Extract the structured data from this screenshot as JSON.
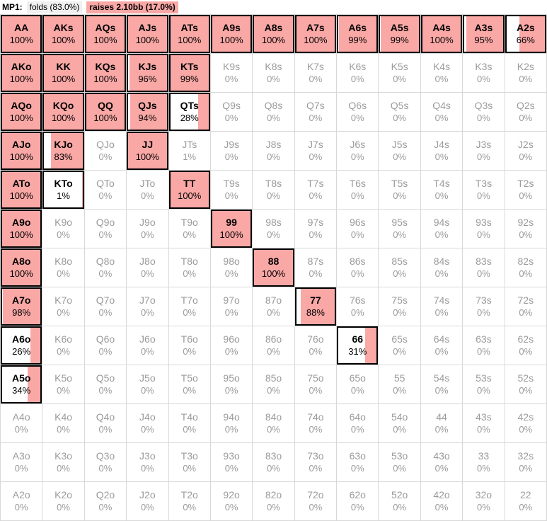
{
  "header": {
    "position_label": "MP1:",
    "folds_label": "folds (83.0%)",
    "raises_label": "raises 2.10bb (17.0%)"
  },
  "colors": {
    "raise_fill": "#f9a8a6",
    "grid_line": "#d8d8d8",
    "muted_text": "#9b9b9b",
    "hot_border": "#000000"
  },
  "chart_data": {
    "type": "heatmap",
    "title": "MP1 preflop range: folds 83.0%, raises 2.10bb 17.0%",
    "legend": [
      "raise frequency shown as pink fill from right"
    ],
    "rows": [
      [
        {
          "h": "AA",
          "p": 100,
          "hot": true
        },
        {
          "h": "AKs",
          "p": 100,
          "hot": true
        },
        {
          "h": "AQs",
          "p": 100,
          "hot": true
        },
        {
          "h": "AJs",
          "p": 100,
          "hot": true
        },
        {
          "h": "ATs",
          "p": 100,
          "hot": true
        },
        {
          "h": "A9s",
          "p": 100,
          "hot": true
        },
        {
          "h": "A8s",
          "p": 100,
          "hot": true
        },
        {
          "h": "A7s",
          "p": 100,
          "hot": true
        },
        {
          "h": "A6s",
          "p": 99,
          "hot": true
        },
        {
          "h": "A5s",
          "p": 99,
          "hot": true
        },
        {
          "h": "A4s",
          "p": 100,
          "hot": true
        },
        {
          "h": "A3s",
          "p": 95,
          "hot": true
        },
        {
          "h": "A2s",
          "p": 66,
          "hot": true
        }
      ],
      [
        {
          "h": "AKo",
          "p": 100,
          "hot": true
        },
        {
          "h": "KK",
          "p": 100,
          "hot": true
        },
        {
          "h": "KQs",
          "p": 100,
          "hot": true
        },
        {
          "h": "KJs",
          "p": 96,
          "hot": true
        },
        {
          "h": "KTs",
          "p": 99,
          "hot": true
        },
        {
          "h": "K9s",
          "p": 0,
          "hot": false
        },
        {
          "h": "K8s",
          "p": 0,
          "hot": false
        },
        {
          "h": "K7s",
          "p": 0,
          "hot": false
        },
        {
          "h": "K6s",
          "p": 0,
          "hot": false
        },
        {
          "h": "K5s",
          "p": 0,
          "hot": false
        },
        {
          "h": "K4s",
          "p": 0,
          "hot": false
        },
        {
          "h": "K3s",
          "p": 0,
          "hot": false
        },
        {
          "h": "K2s",
          "p": 0,
          "hot": false
        }
      ],
      [
        {
          "h": "AQo",
          "p": 100,
          "hot": true
        },
        {
          "h": "KQo",
          "p": 100,
          "hot": true
        },
        {
          "h": "QQ",
          "p": 100,
          "hot": true
        },
        {
          "h": "QJs",
          "p": 94,
          "hot": true
        },
        {
          "h": "QTs",
          "p": 28,
          "hot": true
        },
        {
          "h": "Q9s",
          "p": 0,
          "hot": false
        },
        {
          "h": "Q8s",
          "p": 0,
          "hot": false
        },
        {
          "h": "Q7s",
          "p": 0,
          "hot": false
        },
        {
          "h": "Q6s",
          "p": 0,
          "hot": false
        },
        {
          "h": "Q5s",
          "p": 0,
          "hot": false
        },
        {
          "h": "Q4s",
          "p": 0,
          "hot": false
        },
        {
          "h": "Q3s",
          "p": 0,
          "hot": false
        },
        {
          "h": "Q2s",
          "p": 0,
          "hot": false
        }
      ],
      [
        {
          "h": "AJo",
          "p": 100,
          "hot": true
        },
        {
          "h": "KJo",
          "p": 83,
          "hot": true
        },
        {
          "h": "QJo",
          "p": 0,
          "hot": false
        },
        {
          "h": "JJ",
          "p": 100,
          "hot": true
        },
        {
          "h": "JTs",
          "p": 1,
          "hot": false
        },
        {
          "h": "J9s",
          "p": 0,
          "hot": false
        },
        {
          "h": "J8s",
          "p": 0,
          "hot": false
        },
        {
          "h": "J7s",
          "p": 0,
          "hot": false
        },
        {
          "h": "J6s",
          "p": 0,
          "hot": false
        },
        {
          "h": "J5s",
          "p": 0,
          "hot": false
        },
        {
          "h": "J4s",
          "p": 0,
          "hot": false
        },
        {
          "h": "J3s",
          "p": 0,
          "hot": false
        },
        {
          "h": "J2s",
          "p": 0,
          "hot": false
        }
      ],
      [
        {
          "h": "ATo",
          "p": 100,
          "hot": true
        },
        {
          "h": "KTo",
          "p": 1,
          "hot": true
        },
        {
          "h": "QTo",
          "p": 0,
          "hot": false
        },
        {
          "h": "JTo",
          "p": 0,
          "hot": false
        },
        {
          "h": "TT",
          "p": 100,
          "hot": true
        },
        {
          "h": "T9s",
          "p": 0,
          "hot": false
        },
        {
          "h": "T8s",
          "p": 0,
          "hot": false
        },
        {
          "h": "T7s",
          "p": 0,
          "hot": false
        },
        {
          "h": "T6s",
          "p": 0,
          "hot": false
        },
        {
          "h": "T5s",
          "p": 0,
          "hot": false
        },
        {
          "h": "T4s",
          "p": 0,
          "hot": false
        },
        {
          "h": "T3s",
          "p": 0,
          "hot": false
        },
        {
          "h": "T2s",
          "p": 0,
          "hot": false
        }
      ],
      [
        {
          "h": "A9o",
          "p": 100,
          "hot": true
        },
        {
          "h": "K9o",
          "p": 0,
          "hot": false
        },
        {
          "h": "Q9o",
          "p": 0,
          "hot": false
        },
        {
          "h": "J9o",
          "p": 0,
          "hot": false
        },
        {
          "h": "T9o",
          "p": 0,
          "hot": false
        },
        {
          "h": "99",
          "p": 100,
          "hot": true
        },
        {
          "h": "98s",
          "p": 0,
          "hot": false
        },
        {
          "h": "97s",
          "p": 0,
          "hot": false
        },
        {
          "h": "96s",
          "p": 0,
          "hot": false
        },
        {
          "h": "95s",
          "p": 0,
          "hot": false
        },
        {
          "h": "94s",
          "p": 0,
          "hot": false
        },
        {
          "h": "93s",
          "p": 0,
          "hot": false
        },
        {
          "h": "92s",
          "p": 0,
          "hot": false
        }
      ],
      [
        {
          "h": "A8o",
          "p": 100,
          "hot": true
        },
        {
          "h": "K8o",
          "p": 0,
          "hot": false
        },
        {
          "h": "Q8o",
          "p": 0,
          "hot": false
        },
        {
          "h": "J8o",
          "p": 0,
          "hot": false
        },
        {
          "h": "T8o",
          "p": 0,
          "hot": false
        },
        {
          "h": "98o",
          "p": 0,
          "hot": false
        },
        {
          "h": "88",
          "p": 100,
          "hot": true
        },
        {
          "h": "87s",
          "p": 0,
          "hot": false
        },
        {
          "h": "86s",
          "p": 0,
          "hot": false
        },
        {
          "h": "85s",
          "p": 0,
          "hot": false
        },
        {
          "h": "84s",
          "p": 0,
          "hot": false
        },
        {
          "h": "83s",
          "p": 0,
          "hot": false
        },
        {
          "h": "82s",
          "p": 0,
          "hot": false
        }
      ],
      [
        {
          "h": "A7o",
          "p": 98,
          "hot": true
        },
        {
          "h": "K7o",
          "p": 0,
          "hot": false
        },
        {
          "h": "Q7o",
          "p": 0,
          "hot": false
        },
        {
          "h": "J7o",
          "p": 0,
          "hot": false
        },
        {
          "h": "T7o",
          "p": 0,
          "hot": false
        },
        {
          "h": "97o",
          "p": 0,
          "hot": false
        },
        {
          "h": "87o",
          "p": 0,
          "hot": false
        },
        {
          "h": "77",
          "p": 88,
          "hot": true
        },
        {
          "h": "76s",
          "p": 0,
          "hot": false
        },
        {
          "h": "75s",
          "p": 0,
          "hot": false
        },
        {
          "h": "74s",
          "p": 0,
          "hot": false
        },
        {
          "h": "73s",
          "p": 0,
          "hot": false
        },
        {
          "h": "72s",
          "p": 0,
          "hot": false
        }
      ],
      [
        {
          "h": "A6o",
          "p": 26,
          "hot": true
        },
        {
          "h": "K6o",
          "p": 0,
          "hot": false
        },
        {
          "h": "Q6o",
          "p": 0,
          "hot": false
        },
        {
          "h": "J6o",
          "p": 0,
          "hot": false
        },
        {
          "h": "T6o",
          "p": 0,
          "hot": false
        },
        {
          "h": "96o",
          "p": 0,
          "hot": false
        },
        {
          "h": "86o",
          "p": 0,
          "hot": false
        },
        {
          "h": "76o",
          "p": 0,
          "hot": false
        },
        {
          "h": "66",
          "p": 31,
          "hot": true
        },
        {
          "h": "65s",
          "p": 0,
          "hot": false
        },
        {
          "h": "64s",
          "p": 0,
          "hot": false
        },
        {
          "h": "63s",
          "p": 0,
          "hot": false
        },
        {
          "h": "62s",
          "p": 0,
          "hot": false
        }
      ],
      [
        {
          "h": "A5o",
          "p": 34,
          "hot": true
        },
        {
          "h": "K5o",
          "p": 0,
          "hot": false
        },
        {
          "h": "Q5o",
          "p": 0,
          "hot": false
        },
        {
          "h": "J5o",
          "p": 0,
          "hot": false
        },
        {
          "h": "T5o",
          "p": 0,
          "hot": false
        },
        {
          "h": "95o",
          "p": 0,
          "hot": false
        },
        {
          "h": "85o",
          "p": 0,
          "hot": false
        },
        {
          "h": "75o",
          "p": 0,
          "hot": false
        },
        {
          "h": "65o",
          "p": 0,
          "hot": false
        },
        {
          "h": "55",
          "p": 0,
          "hot": false
        },
        {
          "h": "54s",
          "p": 0,
          "hot": false
        },
        {
          "h": "53s",
          "p": 0,
          "hot": false
        },
        {
          "h": "52s",
          "p": 0,
          "hot": false
        }
      ],
      [
        {
          "h": "A4o",
          "p": 0,
          "hot": false
        },
        {
          "h": "K4o",
          "p": 0,
          "hot": false
        },
        {
          "h": "Q4o",
          "p": 0,
          "hot": false
        },
        {
          "h": "J4o",
          "p": 0,
          "hot": false
        },
        {
          "h": "T4o",
          "p": 0,
          "hot": false
        },
        {
          "h": "94o",
          "p": 0,
          "hot": false
        },
        {
          "h": "84o",
          "p": 0,
          "hot": false
        },
        {
          "h": "74o",
          "p": 0,
          "hot": false
        },
        {
          "h": "64o",
          "p": 0,
          "hot": false
        },
        {
          "h": "54o",
          "p": 0,
          "hot": false
        },
        {
          "h": "44",
          "p": 0,
          "hot": false
        },
        {
          "h": "43s",
          "p": 0,
          "hot": false
        },
        {
          "h": "42s",
          "p": 0,
          "hot": false
        }
      ],
      [
        {
          "h": "A3o",
          "p": 0,
          "hot": false
        },
        {
          "h": "K3o",
          "p": 0,
          "hot": false
        },
        {
          "h": "Q3o",
          "p": 0,
          "hot": false
        },
        {
          "h": "J3o",
          "p": 0,
          "hot": false
        },
        {
          "h": "T3o",
          "p": 0,
          "hot": false
        },
        {
          "h": "93o",
          "p": 0,
          "hot": false
        },
        {
          "h": "83o",
          "p": 0,
          "hot": false
        },
        {
          "h": "73o",
          "p": 0,
          "hot": false
        },
        {
          "h": "63o",
          "p": 0,
          "hot": false
        },
        {
          "h": "53o",
          "p": 0,
          "hot": false
        },
        {
          "h": "43o",
          "p": 0,
          "hot": false
        },
        {
          "h": "33",
          "p": 0,
          "hot": false
        },
        {
          "h": "32s",
          "p": 0,
          "hot": false
        }
      ],
      [
        {
          "h": "A2o",
          "p": 0,
          "hot": false
        },
        {
          "h": "K2o",
          "p": 0,
          "hot": false
        },
        {
          "h": "Q2o",
          "p": 0,
          "hot": false
        },
        {
          "h": "J2o",
          "p": 0,
          "hot": false
        },
        {
          "h": "T2o",
          "p": 0,
          "hot": false
        },
        {
          "h": "92o",
          "p": 0,
          "hot": false
        },
        {
          "h": "82o",
          "p": 0,
          "hot": false
        },
        {
          "h": "72o",
          "p": 0,
          "hot": false
        },
        {
          "h": "62o",
          "p": 0,
          "hot": false
        },
        {
          "h": "52o",
          "p": 0,
          "hot": false
        },
        {
          "h": "42o",
          "p": 0,
          "hot": false
        },
        {
          "h": "32o",
          "p": 0,
          "hot": false
        },
        {
          "h": "22",
          "p": 0,
          "hot": false
        }
      ]
    ]
  }
}
